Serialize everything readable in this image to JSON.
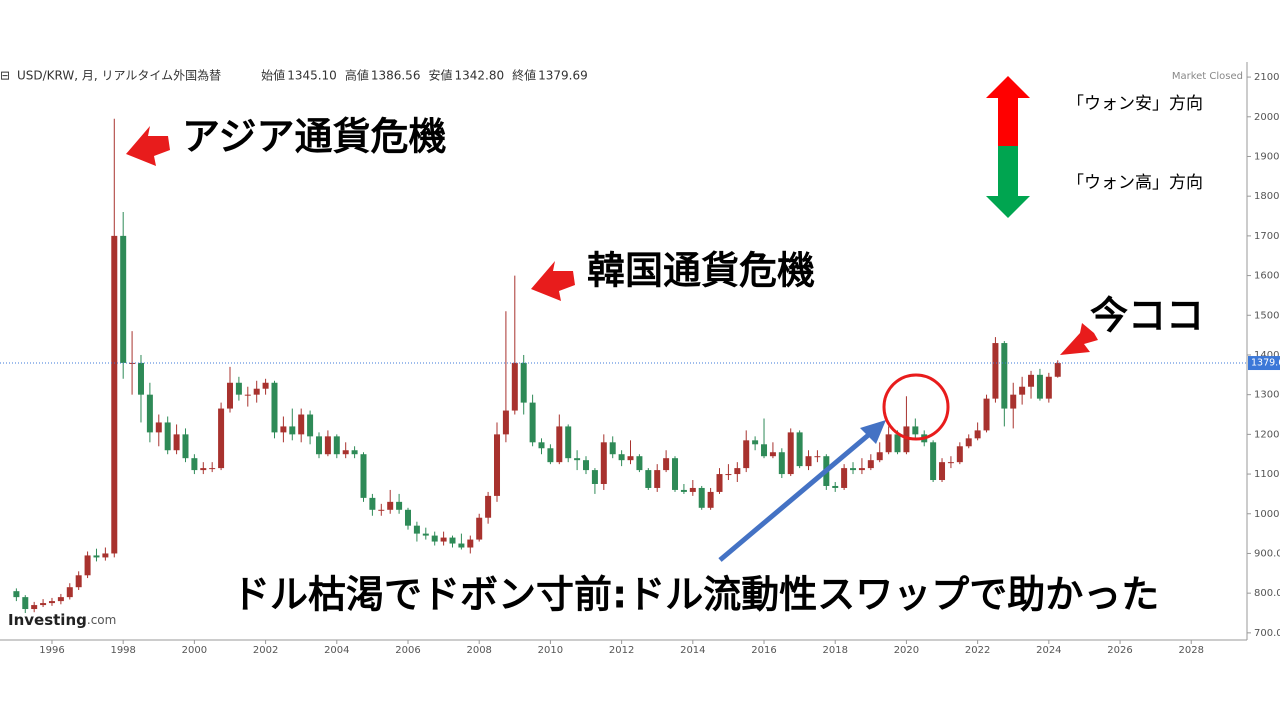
{
  "header": {
    "symbol": "USD/KRW, 月, リアルタイム外国為替",
    "ohlc": [
      {
        "label": "始値",
        "value": "1345.10"
      },
      {
        "label": "高値",
        "value": "1386.56"
      },
      {
        "label": "安値",
        "value": "1342.80"
      },
      {
        "label": "終値",
        "value": "1379.69"
      }
    ],
    "status": "Market Closed",
    "logo": "Investing",
    "logo_suffix": ".com"
  },
  "chart_data": {
    "type": "candlestick",
    "annotations": [
      "アジア通貨危機",
      "韓国通貨危機",
      "今ココ",
      "ドル枯渇でドボン寸前:ドル流動性スワップで助かった",
      "「ウォン安」方向",
      "「ウォン高」方向"
    ],
    "xlim": [
      1994.54,
      2029.51
    ],
    "xticks": [
      1996,
      1998,
      2000,
      2002,
      2004,
      2006,
      2008,
      2010,
      2012,
      2014,
      2016,
      2018,
      2020,
      2022,
      2024,
      2026,
      2028
    ],
    "ylim": [
      682,
      2138
    ],
    "yticks": [
      {
        "value": 700,
        "label": "700.0"
      },
      {
        "value": 800,
        "label": "800.0"
      },
      {
        "value": 900,
        "label": "900.0"
      },
      {
        "value": 1000,
        "label": "1000.0"
      },
      {
        "value": 1100,
        "label": "1100.0"
      },
      {
        "value": 1200,
        "label": "1200.0"
      },
      {
        "value": 1300,
        "label": "1300.0"
      },
      {
        "value": 1400,
        "label": "1400.0"
      },
      {
        "value": 1500,
        "label": "1500.0"
      },
      {
        "value": 1600,
        "label": "1600.0"
      },
      {
        "value": 1700,
        "label": "1700.0"
      },
      {
        "value": 1800,
        "label": "1800.0"
      },
      {
        "value": 1900,
        "label": "1900.0"
      },
      {
        "value": 2000,
        "label": "2000.0"
      },
      {
        "value": 2100,
        "label": "2100.0"
      }
    ],
    "up_color": "#a8322e",
    "down_color": "#2e8a57",
    "price_line_color": "#3c78d8",
    "x": [
      1995,
      1995.25,
      1995.5,
      1995.75,
      1996,
      1996.25,
      1996.5,
      1996.75,
      1997,
      1997.25,
      1997.5,
      1997.75,
      1998,
      1998.25,
      1998.5,
      1998.75,
      1999,
      1999.25,
      1999.5,
      1999.75,
      2000,
      2000.25,
      2000.5,
      2000.75,
      2001,
      2001.25,
      2001.5,
      2001.75,
      2002,
      2002.25,
      2002.5,
      2002.75,
      2003,
      2003.25,
      2003.5,
      2003.75,
      2004,
      2004.25,
      2004.5,
      2004.75,
      2005,
      2005.25,
      2005.5,
      2005.75,
      2006,
      2006.25,
      2006.5,
      2006.75,
      2007,
      2007.25,
      2007.5,
      2007.75,
      2008,
      2008.25,
      2008.5,
      2008.75,
      2009,
      2009.25,
      2009.5,
      2009.75,
      2010,
      2010.25,
      2010.5,
      2010.75,
      2011,
      2011.25,
      2011.5,
      2011.75,
      2012,
      2012.25,
      2012.5,
      2012.75,
      2013,
      2013.25,
      2013.5,
      2013.75,
      2014,
      2014.25,
      2014.5,
      2014.75,
      2015,
      2015.25,
      2015.5,
      2015.75,
      2016,
      2016.25,
      2016.5,
      2016.75,
      2017,
      2017.25,
      2017.5,
      2017.75,
      2018,
      2018.25,
      2018.5,
      2018.75,
      2019,
      2019.25,
      2019.5,
      2019.75,
      2020,
      2020.25,
      2020.5,
      2020.75,
      2021,
      2021.25,
      2021.5,
      2021.75,
      2022,
      2022.25,
      2022.5,
      2022.75,
      2023,
      2023.25,
      2023.5,
      2023.75,
      2024,
      2024.25
    ],
    "open": [
      805,
      790,
      760,
      770,
      775,
      780,
      790,
      815,
      845,
      895,
      890,
      900,
      1700,
      1380,
      1380,
      1300,
      1205,
      1230,
      1160,
      1200,
      1140,
      1110,
      1115,
      1115,
      1265,
      1330,
      1300,
      1300,
      1315,
      1330,
      1205,
      1220,
      1200,
      1250,
      1195,
      1150,
      1195,
      1150,
      1160,
      1150,
      1040,
      1010,
      1010,
      1030,
      1010,
      970,
      950,
      945,
      930,
      940,
      925,
      915,
      935,
      990,
      1045,
      1200,
      1260,
      1380,
      1280,
      1180,
      1165,
      1130,
      1220,
      1140,
      1135,
      1110,
      1075,
      1180,
      1150,
      1135,
      1145,
      1110,
      1065,
      1110,
      1140,
      1060,
      1055,
      1065,
      1015,
      1055,
      1100,
      1100,
      1115,
      1185,
      1175,
      1145,
      1155,
      1100,
      1205,
      1120,
      1145,
      1145,
      1070,
      1065,
      1115,
      1110,
      1115,
      1135,
      1155,
      1200,
      1155,
      1220,
      1200,
      1180,
      1085,
      1130,
      1130,
      1170,
      1190,
      1210,
      1290,
      1430,
      1265,
      1300,
      1320,
      1350,
      1290,
      1345.1
    ],
    "high": [
      812,
      795,
      778,
      785,
      788,
      798,
      825,
      855,
      905,
      912,
      915,
      1995,
      1760,
      1460,
      1400,
      1330,
      1250,
      1245,
      1225,
      1215,
      1150,
      1130,
      1130,
      1280,
      1370,
      1345,
      1320,
      1335,
      1340,
      1335,
      1245,
      1265,
      1265,
      1260,
      1205,
      1210,
      1200,
      1180,
      1170,
      1155,
      1050,
      1025,
      1060,
      1050,
      1015,
      980,
      965,
      955,
      955,
      945,
      950,
      945,
      1000,
      1055,
      1230,
      1510,
      1600,
      1400,
      1300,
      1190,
      1175,
      1250,
      1225,
      1160,
      1145,
      1115,
      1200,
      1195,
      1160,
      1185,
      1150,
      1115,
      1125,
      1160,
      1145,
      1075,
      1085,
      1070,
      1065,
      1115,
      1125,
      1130,
      1210,
      1195,
      1240,
      1180,
      1165,
      1215,
      1210,
      1160,
      1160,
      1150,
      1080,
      1125,
      1130,
      1140,
      1150,
      1180,
      1220,
      1210,
      1296,
      1240,
      1210,
      1185,
      1140,
      1145,
      1180,
      1200,
      1230,
      1300,
      1445,
      1435,
      1330,
      1345,
      1360,
      1365,
      1355,
      1386.56
    ],
    "low": [
      780,
      750,
      752,
      765,
      768,
      772,
      784,
      808,
      838,
      880,
      882,
      890,
      1340,
      1300,
      1230,
      1180,
      1170,
      1150,
      1150,
      1130,
      1100,
      1100,
      1105,
      1110,
      1255,
      1285,
      1270,
      1280,
      1300,
      1190,
      1180,
      1185,
      1180,
      1175,
      1140,
      1145,
      1140,
      1140,
      1140,
      1030,
      995,
      995,
      1000,
      1000,
      960,
      930,
      935,
      920,
      920,
      915,
      910,
      900,
      930,
      975,
      1030,
      1180,
      1250,
      1250,
      1170,
      1150,
      1125,
      1125,
      1130,
      1110,
      1100,
      1050,
      1060,
      1140,
      1120,
      1125,
      1105,
      1060,
      1055,
      1105,
      1055,
      1050,
      1045,
      1010,
      1010,
      1050,
      1085,
      1080,
      1105,
      1160,
      1140,
      1140,
      1090,
      1095,
      1115,
      1110,
      1130,
      1060,
      1055,
      1060,
      1100,
      1100,
      1110,
      1130,
      1150,
      1150,
      1150,
      1190,
      1170,
      1080,
      1080,
      1115,
      1125,
      1165,
      1185,
      1205,
      1280,
      1220,
      1215,
      1275,
      1290,
      1285,
      1280,
      1342.8
    ],
    "close": [
      790,
      760,
      770,
      775,
      780,
      790,
      815,
      845,
      895,
      890,
      900,
      1700,
      1380,
      1380,
      1300,
      1205,
      1230,
      1160,
      1200,
      1140,
      1110,
      1115,
      1115,
      1265,
      1330,
      1300,
      1300,
      1315,
      1330,
      1205,
      1220,
      1200,
      1250,
      1195,
      1150,
      1195,
      1150,
      1160,
      1150,
      1040,
      1010,
      1010,
      1030,
      1010,
      970,
      950,
      945,
      930,
      940,
      925,
      915,
      935,
      990,
      1045,
      1200,
      1260,
      1380,
      1280,
      1180,
      1165,
      1130,
      1220,
      1140,
      1135,
      1110,
      1075,
      1180,
      1150,
      1135,
      1145,
      1110,
      1065,
      1110,
      1140,
      1060,
      1055,
      1065,
      1015,
      1055,
      1100,
      1100,
      1115,
      1185,
      1175,
      1145,
      1155,
      1100,
      1205,
      1120,
      1145,
      1145,
      1070,
      1065,
      1115,
      1110,
      1115,
      1135,
      1155,
      1200,
      1155,
      1220,
      1200,
      1180,
      1085,
      1130,
      1130,
      1170,
      1190,
      1210,
      1290,
      1430,
      1265,
      1300,
      1320,
      1350,
      1290,
      1345.1,
      1379.69
    ]
  }
}
